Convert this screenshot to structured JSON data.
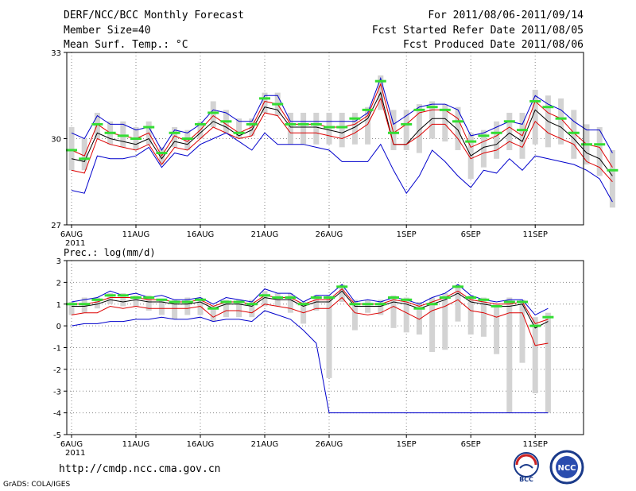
{
  "header": {
    "title": "DERF/NCC/BCC Monthly Forecast",
    "member_size": "Member Size=40",
    "variable": "Mean Surf. Temp.: °C",
    "period": "For 2011/08/06-2011/09/14",
    "fcst_started": "Fcst Started Refer Date 2011/08/05",
    "fcst_produced": "Fcst Produced Date 2011/08/06"
  },
  "footer": {
    "url": "http://cmdp.ncc.cma.gov.cn",
    "credit": "GrADS: COLA/IGES",
    "logo_bcc": "BCC",
    "logo_ncc": "NCC"
  },
  "colors": {
    "max_line": "#0000cc",
    "min_line": "#0000cc",
    "upper_line": "#dd0000",
    "lower_line": "#dd0000",
    "mean_line": "#000000",
    "box": "#d3d3d3",
    "marker": "#33dd33",
    "grid": "#888888"
  },
  "chart_data": [
    {
      "type": "line",
      "title": "Mean Surf. Temp.: °C",
      "ylim": [
        27,
        33
      ],
      "yticks": [
        27,
        30,
        33
      ],
      "x_tick_labels": [
        "6AUG",
        "11AUG",
        "16AUG",
        "21AUG",
        "26AUG",
        "1SEP",
        "6SEP",
        "11SEP"
      ],
      "x_tick_days": [
        0,
        5,
        10,
        15,
        20,
        26,
        31,
        36
      ],
      "year_label": "2011",
      "days": 40,
      "series": [
        {
          "name": "max",
          "color": "#0000cc",
          "values": [
            30.2,
            30.0,
            30.8,
            30.5,
            30.5,
            30.3,
            30.4,
            29.6,
            30.3,
            30.2,
            30.5,
            31.0,
            30.9,
            30.6,
            30.6,
            31.5,
            31.5,
            30.6,
            30.6,
            30.6,
            30.6,
            30.6,
            30.6,
            30.9,
            32.1,
            30.5,
            30.8,
            31.1,
            31.2,
            31.2,
            31.0,
            30.1,
            30.2,
            30.4,
            30.6,
            30.5,
            31.5,
            31.2,
            31.0,
            30.6,
            30.3,
            30.3,
            29.5
          ]
        },
        {
          "name": "upper",
          "color": "#dd0000",
          "values": [
            29.6,
            29.4,
            30.5,
            30.2,
            30.1,
            30.0,
            30.2,
            29.4,
            30.1,
            29.9,
            30.3,
            30.8,
            30.5,
            30.2,
            30.4,
            31.3,
            31.2,
            30.5,
            30.5,
            30.5,
            30.4,
            30.4,
            30.5,
            30.8,
            31.9,
            30.2,
            30.5,
            30.9,
            31.0,
            31.0,
            30.7,
            29.7,
            29.9,
            30.1,
            30.4,
            30.1,
            31.3,
            30.9,
            30.7,
            30.2,
            29.8,
            29.7,
            29.0
          ]
        },
        {
          "name": "mean",
          "color": "#000000",
          "values": [
            29.3,
            29.2,
            30.2,
            30.0,
            29.9,
            29.8,
            30.0,
            29.3,
            29.9,
            29.8,
            30.2,
            30.6,
            30.4,
            30.1,
            30.3,
            31.1,
            31.0,
            30.4,
            30.4,
            30.4,
            30.3,
            30.2,
            30.4,
            30.7,
            31.6,
            29.8,
            29.8,
            30.3,
            30.7,
            30.7,
            30.3,
            29.4,
            29.7,
            29.8,
            30.2,
            29.9,
            31.0,
            30.6,
            30.4,
            30.0,
            29.5,
            29.3,
            28.7
          ]
        },
        {
          "name": "lower",
          "color": "#dd0000",
          "values": [
            28.9,
            28.8,
            30.0,
            29.8,
            29.7,
            29.6,
            29.8,
            29.1,
            29.7,
            29.6,
            30.0,
            30.4,
            30.2,
            30.0,
            30.1,
            30.9,
            30.8,
            30.2,
            30.2,
            30.2,
            30.1,
            30.0,
            30.2,
            30.5,
            31.4,
            29.8,
            29.8,
            30.1,
            30.5,
            30.5,
            30.0,
            29.3,
            29.5,
            29.6,
            29.9,
            29.7,
            30.6,
            30.2,
            30.0,
            29.8,
            29.2,
            29.0,
            28.5
          ]
        },
        {
          "name": "min",
          "color": "#0000cc",
          "values": [
            28.2,
            28.1,
            29.4,
            29.3,
            29.3,
            29.4,
            29.7,
            29.0,
            29.5,
            29.4,
            29.8,
            30.0,
            30.2,
            29.9,
            29.6,
            30.2,
            29.8,
            29.8,
            29.8,
            29.7,
            29.6,
            29.2,
            29.2,
            29.2,
            29.8,
            28.9,
            28.1,
            28.7,
            29.6,
            29.2,
            28.7,
            28.3,
            28.9,
            28.8,
            29.3,
            28.9,
            29.4,
            29.3,
            29.2,
            29.1,
            28.9,
            28.6,
            27.8
          ]
        }
      ],
      "boxes": {
        "marker": [
          29.6,
          29.3,
          30.5,
          30.2,
          30.1,
          30.0,
          30.4,
          29.5,
          30.2,
          30.0,
          30.5,
          30.9,
          30.6,
          30.2,
          30.5,
          31.4,
          31.2,
          30.5,
          30.5,
          30.5,
          30.4,
          30.4,
          30.7,
          31.0,
          32.0,
          30.2,
          30.5,
          31.0,
          31.1,
          31.0,
          30.6,
          29.9,
          30.1,
          30.2,
          30.6,
          30.3,
          31.3,
          31.1,
          30.7,
          30.2,
          29.8,
          29.8,
          28.9
        ],
        "low": [
          28.9,
          28.9,
          30.0,
          29.8,
          29.7,
          29.6,
          29.8,
          29.1,
          29.7,
          29.6,
          30.0,
          30.4,
          30.2,
          30.0,
          30.1,
          30.9,
          30.8,
          29.8,
          29.8,
          29.8,
          29.8,
          29.7,
          29.8,
          29.8,
          31.0,
          29.6,
          29.6,
          29.5,
          30.0,
          29.9,
          29.6,
          28.6,
          29.0,
          29.3,
          29.6,
          29.3,
          29.8,
          29.7,
          29.8,
          29.3,
          29.1,
          28.7,
          27.6
        ],
        "high": [
          30.4,
          30.0,
          30.9,
          30.6,
          30.6,
          30.4,
          30.6,
          29.7,
          30.4,
          30.3,
          30.6,
          31.3,
          31.0,
          30.7,
          30.7,
          31.6,
          31.6,
          30.9,
          30.9,
          30.9,
          30.9,
          30.9,
          30.9,
          31.1,
          32.2,
          31.0,
          31.0,
          31.2,
          31.3,
          31.2,
          31.1,
          30.2,
          30.3,
          30.6,
          30.9,
          30.9,
          31.7,
          31.5,
          31.4,
          31.0,
          30.5,
          30.4,
          29.6
        ]
      }
    },
    {
      "type": "line",
      "title": "Prec.: log(mm/d)",
      "ylim": [
        -5,
        3
      ],
      "yticks": [
        -5,
        -4,
        -3,
        -2,
        -1,
        0,
        1,
        2,
        3
      ],
      "x_tick_labels": [
        "6AUG",
        "11AUG",
        "16AUG",
        "21AUG",
        "26AUG",
        "1SEP",
        "6SEP",
        "11SEP"
      ],
      "x_tick_days": [
        0,
        5,
        10,
        15,
        20,
        26,
        31,
        36
      ],
      "year_label": "2011",
      "days": 40,
      "series": [
        {
          "name": "max",
          "color": "#0000cc",
          "values": [
            1.1,
            1.2,
            1.3,
            1.6,
            1.4,
            1.5,
            1.3,
            1.4,
            1.2,
            1.2,
            1.3,
            1.0,
            1.3,
            1.2,
            1.1,
            1.7,
            1.5,
            1.5,
            1.1,
            1.4,
            1.4,
            1.9,
            1.1,
            1.2,
            1.1,
            1.3,
            1.2,
            1.0,
            1.3,
            1.5,
            1.9,
            1.4,
            1.2,
            1.1,
            1.2,
            1.2,
            0.5,
            0.8
          ]
        },
        {
          "name": "upper",
          "color": "#dd0000",
          "values": [
            1.0,
            1.0,
            1.1,
            1.3,
            1.3,
            1.3,
            1.2,
            1.2,
            1.1,
            1.1,
            1.2,
            0.9,
            1.1,
            1.1,
            1.0,
            1.4,
            1.3,
            1.3,
            1.0,
            1.2,
            1.2,
            1.7,
            1.0,
            1.0,
            1.0,
            1.2,
            1.1,
            0.9,
            1.1,
            1.3,
            1.6,
            1.2,
            1.1,
            1.0,
            1.0,
            1.1,
            0.1,
            0.3
          ]
        },
        {
          "name": "mean",
          "color": "#000000",
          "values": [
            0.9,
            0.9,
            1.0,
            1.2,
            1.1,
            1.2,
            1.1,
            1.1,
            1.0,
            1.0,
            1.1,
            0.8,
            1.0,
            1.0,
            0.9,
            1.3,
            1.2,
            1.2,
            0.9,
            1.1,
            1.1,
            1.6,
            0.9,
            0.9,
            0.9,
            1.1,
            1.0,
            0.8,
            1.0,
            1.2,
            1.5,
            1.1,
            1.0,
            0.9,
            0.9,
            1.0,
            -0.1,
            0.2
          ]
        },
        {
          "name": "lower",
          "color": "#dd0000",
          "values": [
            0.5,
            0.6,
            0.6,
            0.9,
            0.8,
            0.9,
            0.8,
            0.8,
            0.8,
            0.8,
            0.9,
            0.4,
            0.7,
            0.7,
            0.6,
            1.0,
            0.9,
            0.8,
            0.6,
            0.8,
            0.8,
            1.3,
            0.6,
            0.5,
            0.6,
            0.9,
            0.6,
            0.3,
            0.7,
            0.9,
            1.2,
            0.7,
            0.6,
            0.4,
            0.6,
            0.6,
            -0.9,
            -0.8
          ]
        },
        {
          "name": "min",
          "color": "#0000cc",
          "values": [
            0.0,
            0.1,
            0.1,
            0.2,
            0.2,
            0.3,
            0.3,
            0.4,
            0.3,
            0.3,
            0.4,
            0.2,
            0.3,
            0.3,
            0.2,
            0.7,
            0.5,
            0.3,
            -0.2,
            -0.8,
            -4.0,
            -4.0,
            -4.0,
            -4.0,
            -4.0,
            -4.0,
            -4.0,
            -4.0,
            -4.0,
            -4.0,
            -4.0,
            -4.0,
            -4.0,
            -4.0,
            -4.0,
            -4.0,
            -4.0,
            -4.0
          ]
        }
      ],
      "boxes": {
        "marker": [
          1.0,
          1.0,
          1.2,
          1.4,
          1.4,
          1.3,
          1.3,
          1.2,
          1.1,
          1.1,
          1.2,
          0.8,
          1.1,
          1.1,
          1.0,
          1.4,
          1.3,
          1.3,
          1.0,
          1.3,
          1.3,
          1.8,
          1.0,
          1.0,
          1.0,
          1.3,
          1.2,
          0.8,
          1.0,
          1.3,
          1.8,
          1.3,
          1.2,
          0.9,
          1.1,
          1.1,
          0.0,
          0.4
        ],
        "low": [
          0.5,
          0.6,
          0.8,
          1.0,
          0.9,
          0.9,
          0.7,
          0.5,
          0.3,
          0.5,
          0.5,
          0.2,
          0.4,
          0.4,
          0.4,
          0.9,
          0.9,
          0.6,
          0.1,
          0.7,
          -2.4,
          1.1,
          -0.2,
          0.6,
          0.5,
          -0.1,
          -0.3,
          -0.4,
          -1.2,
          -1.1,
          0.2,
          -0.4,
          -0.5,
          -1.3,
          -4.0,
          -1.7,
          -3.1,
          -4.0
        ],
        "high": [
          1.1,
          1.3,
          1.3,
          1.5,
          1.5,
          1.4,
          1.4,
          1.2,
          1.2,
          1.3,
          1.3,
          0.9,
          1.2,
          1.2,
          1.2,
          1.6,
          1.5,
          1.5,
          1.1,
          1.4,
          1.4,
          1.9,
          1.2,
          1.2,
          1.2,
          1.4,
          1.3,
          1.1,
          1.3,
          1.5,
          1.9,
          1.4,
          1.3,
          1.0,
          1.3,
          1.2,
          0.4,
          0.6
        ]
      }
    }
  ]
}
